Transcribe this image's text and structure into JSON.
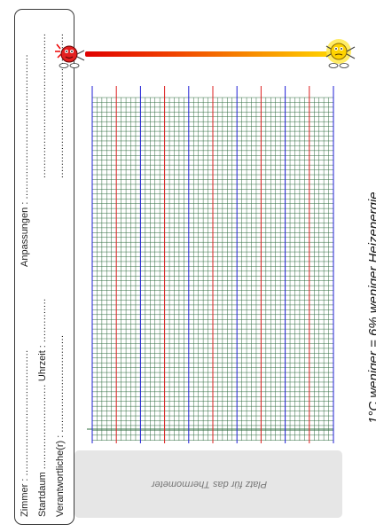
{
  "form": {
    "room_label": "Zimmer :",
    "room_dots": "........................................",
    "start_date_label": "Startdaum",
    "start_date_dots": "...........................",
    "time_label": "Uhrzeit :",
    "time_dots": "..............",
    "responsible_label": "Verantwortliche(r) :",
    "responsible_dots": "...............................",
    "adjustments_label": "Anpassungen :",
    "adjustment_lines": [
      "..............................................",
      "..............................................",
      ".............................................."
    ]
  },
  "thermometer_placeholder": "Platz für das Thermometer",
  "caption": "1°C weniger = 6% weniger Heizenergie",
  "colors": {
    "hot": "#e00000",
    "cold": "#ffd200",
    "grid_minor": "#2e6b3e",
    "grid_blue": "#1f1fd6",
    "grid_red": "#dd2020"
  },
  "icons": {
    "hot_mascot": "hot-thermometer-mascot-icon",
    "cold_mascot": "cold-thermometer-mascot-icon"
  }
}
